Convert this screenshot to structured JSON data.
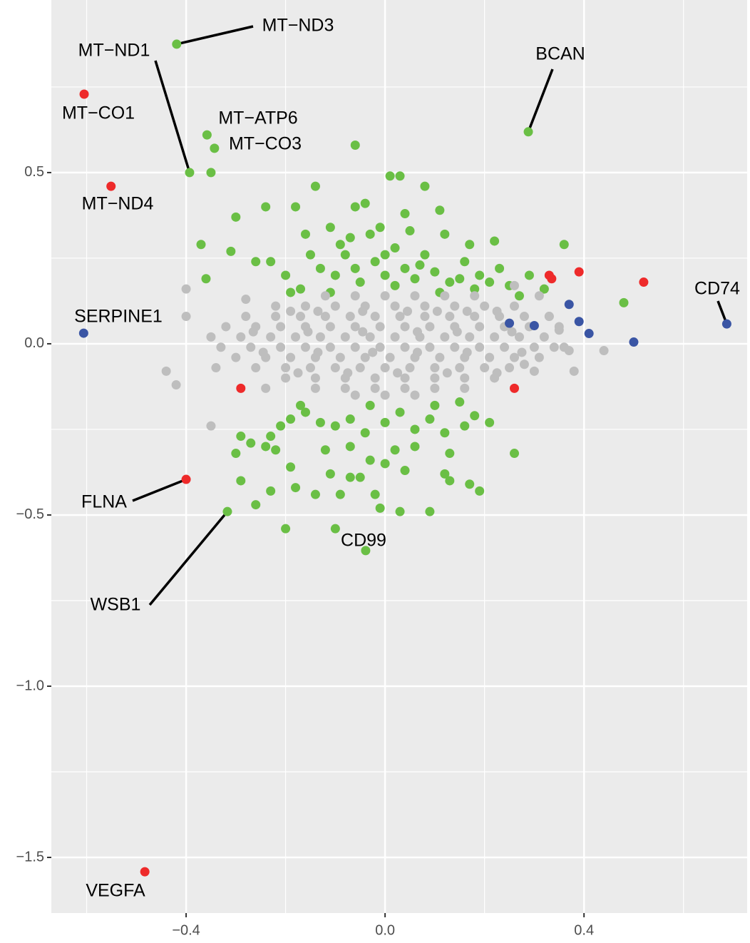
{
  "chart_data": {
    "type": "scatter",
    "xlim": [
      -0.671,
      0.728
    ],
    "ylim": [
      -1.6625,
      1.004
    ],
    "xticks": [
      {
        "value": -0.4,
        "label": "−0.4"
      },
      {
        "value": 0,
        "label": "0.0"
      },
      0.4
    ],
    "yticks": [
      {
        "value": -1.5,
        "label": "−1.5"
      },
      {
        "value": -1,
        "label": "−1.0"
      },
      {
        "value": -0.5,
        "label": "−0.5"
      },
      {
        "value": 0,
        "label": "0.0"
      },
      0.5
    ],
    "x_minor_ticks": [
      -0.6,
      -0.2,
      0.2,
      0.6
    ],
    "y_minor_ticks": [
      -1.25,
      -0.75,
      -0.25,
      0.25,
      0.75
    ],
    "grid": true,
    "series": [
      {
        "color": "#6abf45",
        "x": [
          -0.35,
          -0.06,
          0.01,
          0.03,
          0.08,
          -0.14,
          -0.24,
          -0.18,
          -0.3,
          -0.06,
          -0.04,
          0.04,
          0.11,
          -0.37,
          -0.31,
          -0.16,
          -0.11,
          -0.07,
          -0.03,
          -0.01,
          0.05,
          0.12,
          0.22,
          0.36,
          -0.36,
          -0.26,
          -0.23,
          -0.2,
          -0.17,
          -0.13,
          -0.1,
          -0.08,
          -0.05,
          -0.02,
          0.02,
          0.04,
          0.06,
          0.08,
          0.1,
          0.13,
          0.16,
          0.19,
          0.23,
          0.25,
          0.29,
          0.32,
          0.48,
          -0.15,
          -0.11,
          -0.06,
          0,
          0.02,
          0.07,
          0.11,
          0.15,
          0.18,
          0.21,
          -0.19,
          0.27,
          0.17,
          -0.09,
          0,
          -0.23,
          -0.22,
          -0.24,
          -0.29,
          -0.3,
          -0.27,
          -0.21,
          -0.19,
          -0.16,
          -0.13,
          -0.1,
          -0.07,
          -0.04,
          0,
          0.03,
          0.06,
          0.09,
          0.12,
          0.16,
          0.18,
          0.21,
          -0.12,
          -0.07,
          -0.03,
          0.02,
          0.06,
          0.13,
          0.26,
          -0.19,
          -0.11,
          -0.05,
          0,
          0.04,
          0.12,
          -0.29,
          -0.23,
          -0.18,
          -0.14,
          -0.09,
          -0.07,
          -0.02,
          0.17,
          0.19,
          -0.26,
          -0.2,
          -0.1,
          0.03,
          0.09,
          -0.01,
          0.13,
          -0.17,
          0.1,
          -0.03,
          0.15
        ],
        "values": [
          0.5,
          0.58,
          0.49,
          0.49,
          0.46,
          0.46,
          0.4,
          0.4,
          0.37,
          0.4,
          0.41,
          0.38,
          0.39,
          0.29,
          0.27,
          0.32,
          0.34,
          0.31,
          0.32,
          0.34,
          0.33,
          0.32,
          0.3,
          0.29,
          0.19,
          0.24,
          0.24,
          0.2,
          0.16,
          0.22,
          0.2,
          0.26,
          0.18,
          0.24,
          0.28,
          0.22,
          0.19,
          0.26,
          0.21,
          0.18,
          0.24,
          0.2,
          0.22,
          0.17,
          0.2,
          0.16,
          0.12,
          0.26,
          0.15,
          0.22,
          0.2,
          0.17,
          0.23,
          0.15,
          0.19,
          0.16,
          0.18,
          0.15,
          0.14,
          0.29,
          0.29,
          0.26,
          -0.27,
          -0.31,
          -0.3,
          -0.27,
          -0.32,
          -0.29,
          -0.24,
          -0.22,
          -0.2,
          -0.23,
          -0.24,
          -0.22,
          -0.26,
          -0.23,
          -0.2,
          -0.25,
          -0.22,
          -0.26,
          -0.24,
          -0.21,
          -0.23,
          -0.31,
          -0.3,
          -0.34,
          -0.31,
          -0.3,
          -0.32,
          -0.32,
          -0.36,
          -0.38,
          -0.39,
          -0.35,
          -0.37,
          -0.38,
          -0.4,
          -0.43,
          -0.42,
          -0.44,
          -0.44,
          -0.39,
          -0.44,
          -0.41,
          -0.43,
          -0.47,
          -0.54,
          -0.54,
          -0.49,
          -0.49,
          -0.48,
          -0.4,
          -0.18,
          -0.18,
          -0.18,
          -0.17
        ]
      },
      {
        "color": "#bebebe",
        "x": [
          -0.12,
          -0.06,
          0,
          0.06,
          0.12,
          0.18,
          -0.22,
          -0.16,
          -0.1,
          -0.04,
          0.02,
          0.08,
          0.14,
          0.2,
          0.26,
          -0.19,
          -0.135,
          -0.045,
          0.045,
          0.105,
          0.165,
          0.225,
          -0.28,
          -0.22,
          -0.17,
          -0.12,
          -0.07,
          -0.02,
          0.03,
          0.08,
          0.13,
          0.18,
          0.23,
          0.28,
          0.33,
          -0.32,
          -0.26,
          -0.21,
          -0.16,
          -0.11,
          -0.06,
          -0.01,
          0.04,
          0.09,
          0.14,
          0.19,
          0.24,
          0.29,
          0.35,
          -0.265,
          -0.155,
          -0.045,
          0.065,
          0.145,
          0.255,
          -0.35,
          -0.29,
          -0.23,
          -0.18,
          -0.13,
          -0.08,
          -0.03,
          0.02,
          0.07,
          0.12,
          0.17,
          0.22,
          0.27,
          0.32,
          -0.33,
          -0.27,
          -0.21,
          -0.16,
          -0.11,
          -0.06,
          -0.01,
          0.04,
          0.09,
          0.14,
          0.19,
          0.24,
          0.3,
          0.36,
          -0.245,
          -0.135,
          -0.025,
          0.065,
          0.165,
          0.275,
          -0.3,
          -0.24,
          -0.19,
          -0.14,
          -0.09,
          -0.04,
          0.01,
          0.06,
          0.11,
          0.16,
          0.21,
          0.26,
          0.31,
          -0.26,
          -0.2,
          -0.15,
          -0.1,
          -0.05,
          0,
          0.05,
          0.1,
          0.15,
          0.2,
          0.25,
          -0.175,
          -0.075,
          0.025,
          0.125,
          0.225,
          -0.2,
          -0.14,
          -0.08,
          -0.02,
          0.04,
          0.1,
          0.16,
          0.22,
          -0.14,
          -0.08,
          -0.02,
          0.04,
          0.1,
          0.16,
          -0.06,
          0,
          0.06,
          -0.4,
          -0.4,
          -0.44,
          -0.42,
          -0.35,
          0.33,
          0.35,
          0.34,
          0.37,
          0.44,
          0.38,
          0.28,
          0.3,
          0.26,
          0.31,
          -0.28,
          -0.34,
          -0.24
        ],
        "values": [
          0.14,
          0.14,
          0.14,
          0.14,
          0.14,
          0.14,
          0.11,
          0.11,
          0.11,
          0.11,
          0.11,
          0.11,
          0.11,
          0.11,
          0.11,
          0.095,
          0.095,
          0.095,
          0.095,
          0.095,
          0.095,
          0.095,
          0.08,
          0.08,
          0.08,
          0.08,
          0.08,
          0.08,
          0.08,
          0.08,
          0.08,
          0.08,
          0.08,
          0.08,
          0.08,
          0.05,
          0.05,
          0.05,
          0.05,
          0.05,
          0.05,
          0.05,
          0.05,
          0.05,
          0.05,
          0.05,
          0.05,
          0.05,
          0.05,
          0.035,
          0.035,
          0.035,
          0.035,
          0.035,
          0.035,
          0.02,
          0.02,
          0.02,
          0.02,
          0.02,
          0.02,
          0.02,
          0.02,
          0.02,
          0.02,
          0.02,
          0.02,
          0.02,
          0.02,
          -0.01,
          -0.01,
          -0.01,
          -0.01,
          -0.01,
          -0.01,
          -0.01,
          -0.01,
          -0.01,
          -0.01,
          -0.01,
          -0.01,
          -0.01,
          -0.01,
          -0.025,
          -0.025,
          -0.025,
          -0.025,
          -0.025,
          -0.025,
          -0.04,
          -0.04,
          -0.04,
          -0.04,
          -0.04,
          -0.04,
          -0.04,
          -0.04,
          -0.04,
          -0.04,
          -0.04,
          -0.04,
          -0.04,
          -0.07,
          -0.07,
          -0.07,
          -0.07,
          -0.07,
          -0.07,
          -0.07,
          -0.07,
          -0.07,
          -0.07,
          -0.07,
          -0.085,
          -0.085,
          -0.085,
          -0.085,
          -0.085,
          -0.1,
          -0.1,
          -0.1,
          -0.1,
          -0.1,
          -0.1,
          -0.1,
          -0.1,
          -0.13,
          -0.13,
          -0.13,
          -0.13,
          -0.13,
          -0.13,
          -0.15,
          -0.15,
          -0.15,
          0.16,
          0.08,
          -0.08,
          -0.12,
          -0.24,
          0.08,
          0.04,
          -0.01,
          -0.02,
          -0.02,
          -0.08,
          -0.06,
          -0.08,
          0.17,
          0.14,
          0.13,
          -0.07,
          -0.13
        ]
      },
      {
        "color": "#ee2a2a",
        "x": [
          0.33,
          0.335,
          0.39,
          0.52,
          0.26,
          -0.29
        ],
        "values": [
          0.2,
          0.19,
          0.21,
          0.18,
          -0.13,
          -0.13
        ]
      },
      {
        "color": "#3a55a4",
        "x": [
          0.37,
          0.39,
          0.41,
          0.5,
          0.3,
          0.25
        ],
        "values": [
          0.115,
          0.065,
          0.03,
          0.005,
          0.053,
          0.06
        ]
      },
      {
        "color": "#6abf45",
        "x": [
          -0.419,
          -0.393,
          -0.358,
          -0.343,
          0.288,
          -0.317,
          -0.039
        ],
        "values": [
          0.875,
          0.5,
          0.61,
          0.571,
          0.619,
          -0.49,
          -0.604
        ],
        "labels": [
          "MT−ND3",
          "MT−ND1",
          "MT−ATP6",
          "MT−CO3",
          "BCAN",
          "WSB1",
          "CD99"
        ]
      },
      {
        "color": "#ee2a2a",
        "x": [
          -0.605,
          -0.551,
          -0.4,
          -0.483
        ],
        "values": [
          0.729,
          0.46,
          -0.396,
          -1.542
        ],
        "labels": [
          "MT−CO1",
          "MT−ND4",
          "FLNA",
          "VEGFA"
        ]
      },
      {
        "color": "#3a55a4",
        "x": [
          -0.606,
          0.687
        ],
        "values": [
          0.031,
          0.058
        ],
        "labels": [
          "SERPINE1",
          "CD74"
        ]
      }
    ]
  }
}
